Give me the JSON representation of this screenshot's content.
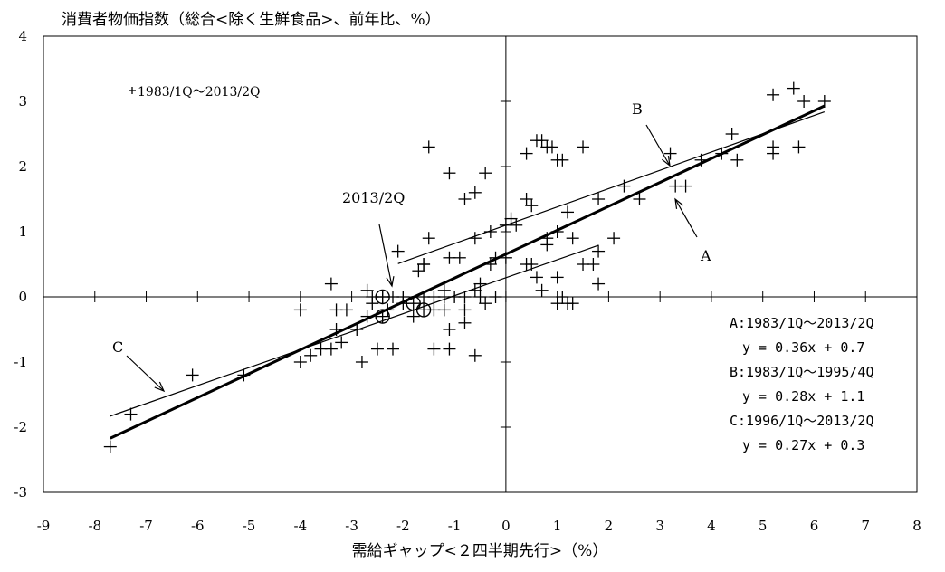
{
  "chart_data": {
    "type": "scatter",
    "title": "",
    "ylabel": "消費者物価指数（総合<除く生鮮食品>、前年比、%）",
    "xlabel": "需給ギャップ<２四半期先行>（%）",
    "xlim": [
      -9,
      8
    ],
    "ylim": [
      -3,
      4
    ],
    "x_ticks": [
      "-9",
      "-8",
      "-7",
      "-6",
      "-5",
      "-4",
      "-3",
      "-2",
      "-1",
      "0",
      "1",
      "2",
      "3",
      "4",
      "5",
      "6",
      "7",
      "8"
    ],
    "y_ticks": [
      "-3",
      "-2",
      "-1",
      "0",
      "1",
      "2",
      "3",
      "4"
    ],
    "legend_label": "1983/1Q～2013/2Q",
    "points": [
      [
        -7.7,
        -2.3
      ],
      [
        -7.3,
        -1.8
      ],
      [
        -6.1,
        -1.2
      ],
      [
        -5.1,
        -1.2
      ],
      [
        -4.0,
        -1.0
      ],
      [
        -3.8,
        -0.9
      ],
      [
        -3.6,
        -0.8
      ],
      [
        -3.4,
        -0.8
      ],
      [
        -3.2,
        -0.7
      ],
      [
        -2.8,
        -1.0
      ],
      [
        -2.5,
        -0.8
      ],
      [
        -2.2,
        -0.8
      ],
      [
        -1.4,
        -0.8
      ],
      [
        -1.1,
        -0.8
      ],
      [
        -0.6,
        -0.9
      ],
      [
        -4.0,
        -0.2
      ],
      [
        -3.3,
        -0.2
      ],
      [
        -3.3,
        -0.5
      ],
      [
        -2.9,
        -0.5
      ],
      [
        -2.7,
        -0.3
      ],
      [
        -3.1,
        -0.2
      ],
      [
        -2.6,
        -0.1
      ],
      [
        -2.3,
        -0.2
      ],
      [
        -2.0,
        -0.1
      ],
      [
        -1.8,
        -0.3
      ],
      [
        -1.4,
        -0.2
      ],
      [
        -1.2,
        -0.2
      ],
      [
        -1.1,
        -0.5
      ],
      [
        -0.8,
        -0.4
      ],
      [
        -0.8,
        -0.2
      ],
      [
        -0.4,
        -0.1
      ],
      [
        -0.2,
        0.0
      ],
      [
        -3.4,
        0.2
      ],
      [
        -2.7,
        0.1
      ],
      [
        -2.6,
        0.0
      ],
      [
        -2.4,
        0.0
      ],
      [
        -2.2,
        0.0
      ],
      [
        -2.0,
        0.0
      ],
      [
        -1.6,
        0.0
      ],
      [
        -1.4,
        0.0
      ],
      [
        -1.2,
        0.0
      ],
      [
        -1.0,
        0.0
      ],
      [
        -0.8,
        0.0
      ],
      [
        -0.6,
        0.1
      ],
      [
        -0.5,
        0.2
      ],
      [
        -0.3,
        0.5
      ],
      [
        -0.2,
        0.6
      ],
      [
        0.0,
        0.6
      ],
      [
        -1.6,
        0.5
      ],
      [
        -1.2,
        0.1
      ],
      [
        -0.5,
        0.0
      ],
      [
        -2.1,
        0.7
      ],
      [
        -1.7,
        0.4
      ],
      [
        -1.6,
        0.5
      ],
      [
        -1.5,
        0.9
      ],
      [
        -1.1,
        0.6
      ],
      [
        -0.9,
        0.6
      ],
      [
        -0.6,
        0.9
      ],
      [
        -0.3,
        1.0
      ],
      [
        0.0,
        1.1
      ],
      [
        0.1,
        1.2
      ],
      [
        0.2,
        1.1
      ],
      [
        -1.1,
        1.9
      ],
      [
        -0.8,
        1.5
      ],
      [
        -0.6,
        1.6
      ],
      [
        -0.4,
        1.9
      ],
      [
        -1.5,
        2.3
      ],
      [
        0.4,
        0.5
      ],
      [
        0.5,
        0.5
      ],
      [
        0.6,
        0.3
      ],
      [
        0.7,
        0.1
      ],
      [
        0.8,
        0.8
      ],
      [
        0.8,
        0.9
      ],
      [
        1.0,
        1.0
      ],
      [
        1.0,
        0.3
      ],
      [
        1.1,
        0.0
      ],
      [
        1.2,
        -0.1
      ],
      [
        1.3,
        -0.1
      ],
      [
        1.0,
        -0.1
      ],
      [
        1.3,
        0.9
      ],
      [
        1.5,
        0.5
      ],
      [
        1.8,
        0.2
      ],
      [
        2.1,
        0.9
      ],
      [
        1.7,
        0.5
      ],
      [
        1.8,
        0.7
      ],
      [
        0.4,
        1.5
      ],
      [
        0.5,
        1.4
      ],
      [
        0.4,
        2.2
      ],
      [
        0.6,
        2.4
      ],
      [
        0.7,
        2.4
      ],
      [
        0.8,
        2.3
      ],
      [
        0.9,
        2.3
      ],
      [
        1.0,
        2.1
      ],
      [
        1.1,
        2.1
      ],
      [
        1.5,
        2.3
      ],
      [
        1.2,
        1.3
      ],
      [
        1.8,
        1.5
      ],
      [
        2.3,
        1.7
      ],
      [
        2.6,
        1.5
      ],
      [
        3.2,
        2.2
      ],
      [
        3.3,
        1.7
      ],
      [
        3.5,
        1.7
      ],
      [
        3.8,
        2.1
      ],
      [
        4.2,
        2.2
      ],
      [
        4.4,
        2.5
      ],
      [
        4.5,
        2.1
      ],
      [
        5.2,
        2.3
      ],
      [
        5.2,
        2.2
      ],
      [
        5.7,
        2.3
      ],
      [
        5.2,
        3.1
      ],
      [
        5.6,
        3.2
      ],
      [
        5.8,
        3.0
      ],
      [
        6.2,
        3.0
      ]
    ],
    "highlight_points": [
      [
        -2.4,
        0.0
      ],
      [
        -2.4,
        -0.3
      ],
      [
        -1.8,
        -0.1
      ],
      [
        -1.6,
        -0.2
      ]
    ],
    "regression_lines": [
      {
        "label": "A",
        "x": [
          -7.7,
          6.2
        ],
        "y": [
          -2.17,
          2.93
        ]
      },
      {
        "label": "B",
        "x": [
          -2.1,
          6.2
        ],
        "y": [
          0.51,
          2.84
        ]
      },
      {
        "label": "C",
        "x": [
          -7.7,
          1.8
        ],
        "y": [
          -1.83,
          0.79
        ]
      }
    ],
    "annotations": {
      "a": "A",
      "b": "B",
      "c": "C",
      "q2013": "2013/2Q"
    },
    "equations": [
      "A:1983/1Q～2013/2Q",
      "y = 0.36x + 0.7",
      "B:1983/1Q～1995/4Q",
      "y = 0.28x + 1.1",
      "C:1996/1Q～2013/2Q",
      "y = 0.27x + 0.3"
    ]
  }
}
